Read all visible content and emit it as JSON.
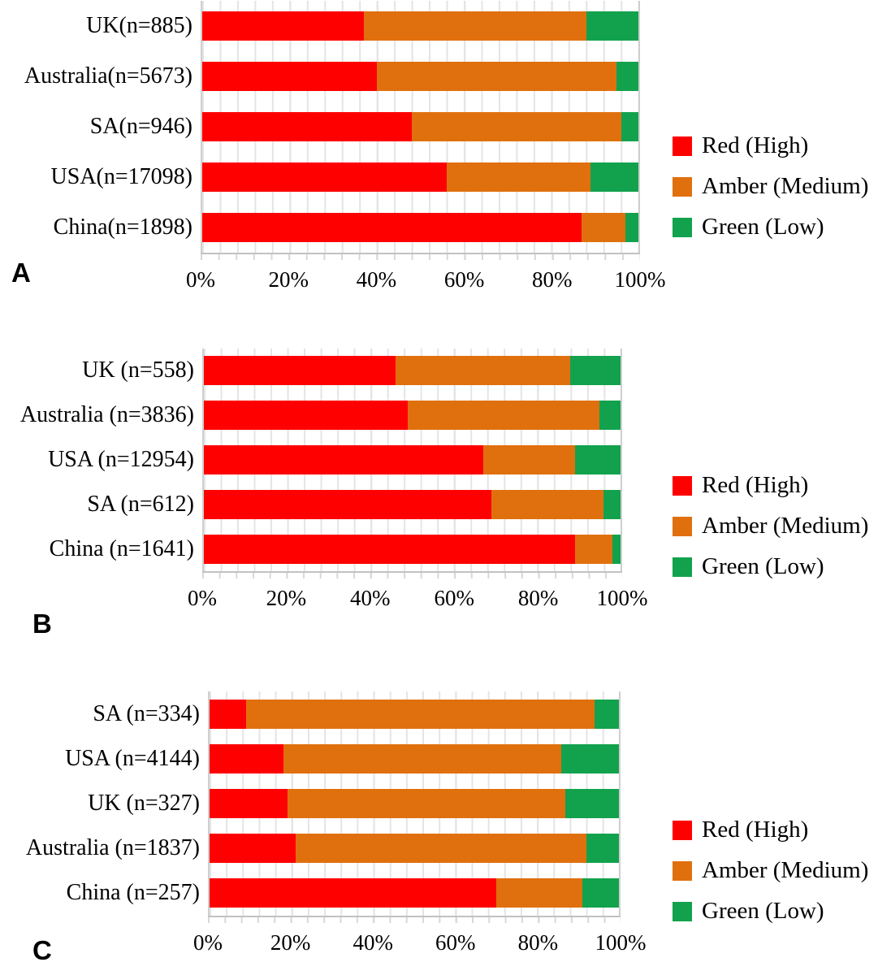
{
  "chart_data": [
    {
      "type": "bar",
      "subtype": "stacked-horizontal-100pct",
      "panel": "A",
      "categories": [
        "UK(n=885)",
        "Australia(n=5673)",
        "SA(n=946)",
        "USA(n=17098)",
        "China(n=1898)"
      ],
      "series": [
        {
          "name": "Red (High)",
          "color": "#fe0000",
          "values": [
            37,
            40,
            48,
            56,
            87
          ]
        },
        {
          "name": "Amber (Medium)",
          "color": "#e0700e",
          "values": [
            51,
            55,
            48,
            33,
            10
          ]
        },
        {
          "name": "Green (Low)",
          "color": "#12a24d",
          "values": [
            12,
            5,
            4,
            11,
            3
          ]
        }
      ],
      "x_ticks": [
        "0%",
        "20%",
        "40%",
        "60%",
        "80%",
        "100%"
      ],
      "xlim": [
        0,
        100
      ],
      "grid": "minor 4%, major 20%",
      "legend_position": "right"
    },
    {
      "type": "bar",
      "subtype": "stacked-horizontal-100pct",
      "panel": "B",
      "categories": [
        "UK (n=558)",
        "Australia (n=3836)",
        "USA (n=12954)",
        "SA (n=612)",
        "China (n=1641)"
      ],
      "series": [
        {
          "name": "Red (High)",
          "color": "#fe0000",
          "values": [
            46,
            49,
            67,
            69,
            89
          ]
        },
        {
          "name": "Amber (Medium)",
          "color": "#e0700e",
          "values": [
            42,
            46,
            22,
            27,
            9
          ]
        },
        {
          "name": "Green (Low)",
          "color": "#12a24d",
          "values": [
            12,
            5,
            11,
            4,
            2
          ]
        }
      ],
      "x_ticks": [
        "0%",
        "20%",
        "40%",
        "60%",
        "80%",
        "100%"
      ],
      "xlim": [
        0,
        100
      ],
      "grid": "minor 4%, major 20%",
      "legend_position": "right"
    },
    {
      "type": "bar",
      "subtype": "stacked-horizontal-100pct",
      "panel": "C",
      "categories": [
        "SA (n=334)",
        "USA (n=4144)",
        "UK (n=327)",
        "Australia (n=1837)",
        "China (n=257)"
      ],
      "series": [
        {
          "name": "Red (High)",
          "color": "#fe0000",
          "values": [
            9,
            18,
            19,
            21,
            70
          ]
        },
        {
          "name": "Amber (Medium)",
          "color": "#e0700e",
          "values": [
            85,
            68,
            68,
            71,
            21
          ]
        },
        {
          "name": "Green (Low)",
          "color": "#12a24d",
          "values": [
            6,
            14,
            13,
            8,
            9
          ]
        }
      ],
      "x_ticks": [
        "0%",
        "20%",
        "40%",
        "60%",
        "80%",
        "100%"
      ],
      "xlim": [
        0,
        100
      ],
      "grid": "minor 4%, major 20%",
      "legend_position": "right"
    }
  ],
  "colors": {
    "red": "#fe0000",
    "amber": "#e0700e",
    "green": "#12a24d"
  }
}
